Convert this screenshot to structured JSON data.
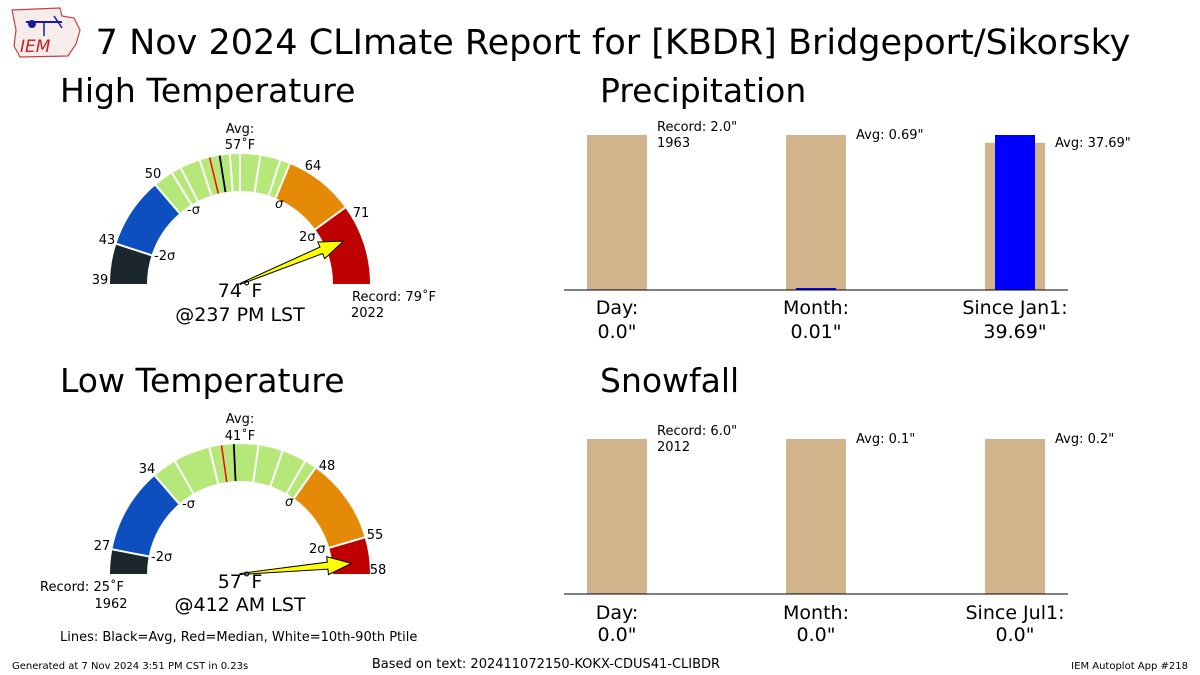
{
  "title": "7 Nov 2024 CLImate Report for [KBDR] Bridgeport/Sikorsky",
  "logo": {
    "text": "IEM"
  },
  "footer": {
    "generated": "Generated at 7 Nov 2024 3:51 PM CST in 0.23s",
    "based_on": "Based on text: 202411072150-KOKX-CDUS41-CLIBDR",
    "app": "IEM Autoplot App #218",
    "lines_note": "Lines: Black=Avg, Red=Median, White=10th-90th Ptile"
  },
  "colors": {
    "gauge_dark": "#1c262d",
    "gauge_blue": "#0e4fc0",
    "gauge_green": "#b5e878",
    "gauge_orange": "#e58a06",
    "gauge_red": "#bf0000",
    "arrow_fill": "#ffff00",
    "bar_avg": "#d2b48c",
    "bar_obs": "#0000ff"
  },
  "chart_data": [
    {
      "type": "gauge",
      "title": "High Temperature",
      "unit": "°F",
      "range": [
        39,
        79
      ],
      "bands": [
        {
          "from": 39,
          "to": 43,
          "color": "#1c262d"
        },
        {
          "from": 43,
          "to": 50,
          "color": "#0e4fc0"
        },
        {
          "from": 50,
          "to": 64,
          "color": "#b5e878"
        },
        {
          "from": 64,
          "to": 71,
          "color": "#e58a06"
        },
        {
          "from": 71,
          "to": 79,
          "color": "#bf0000"
        }
      ],
      "tick_labels": [
        "39",
        "43",
        "50",
        "64",
        "71"
      ],
      "sigma_labels": [
        "-2σ",
        "-σ",
        "σ",
        "2σ"
      ],
      "average": 57,
      "average_label": "Avg:",
      "average_value_label": "57˚F",
      "median": 56,
      "percentile_lines": [
        52,
        53,
        55,
        58,
        59,
        61,
        63
      ],
      "observed": 74,
      "observed_label": "74˚F",
      "time_label": "@237 PM LST",
      "record_label": "Record: 79˚F",
      "record_year": "2022"
    },
    {
      "type": "gauge",
      "title": "Low Temperature",
      "unit": "°F",
      "range": [
        25,
        58
      ],
      "bands": [
        {
          "from": 25,
          "to": 27,
          "color": "#1c262d"
        },
        {
          "from": 27,
          "to": 34,
          "color": "#0e4fc0"
        },
        {
          "from": 34,
          "to": 48,
          "color": "#b5e878"
        },
        {
          "from": 48,
          "to": 55,
          "color": "#e58a06"
        },
        {
          "from": 55,
          "to": 58,
          "color": "#bf0000"
        }
      ],
      "tick_labels": [
        "27",
        "34",
        "48",
        "55",
        "58"
      ],
      "sigma_labels": [
        "-2σ",
        "-σ",
        "σ",
        "2σ"
      ],
      "average": 41,
      "average_label": "Avg:",
      "average_value_label": "41˚F",
      "median": 40,
      "percentile_lines": [
        36,
        39,
        43,
        45,
        47
      ],
      "observed": 57,
      "observed_label": "57˚F",
      "time_label": "@412 AM LST",
      "record_label": "Record: 25˚F",
      "record_year": "1962"
    },
    {
      "type": "bar",
      "title": "Precipitation",
      "categories": [
        "Day:",
        "Month:",
        "Since Jan1:"
      ],
      "values_text": [
        "0.0\"",
        "0.01\"",
        "39.69\""
      ],
      "observed_fraction_of_top": [
        0.0,
        0.01,
        1.0
      ],
      "reference_fraction_of_top": [
        1.0,
        1.0,
        0.95
      ],
      "annotations": [
        {
          "text": "Record: 2.0\"",
          "subtext": "1963"
        },
        {
          "text": "Avg: 0.69\"",
          "subtext": ""
        },
        {
          "text": "Avg: 37.69\"",
          "subtext": ""
        }
      ]
    },
    {
      "type": "bar",
      "title": "Snowfall",
      "categories": [
        "Day:",
        "Month:",
        "Since Jul1:"
      ],
      "values_text": [
        "0.0\"",
        "0.0\"",
        "0.0\""
      ],
      "observed_fraction_of_top": [
        0.0,
        0.0,
        0.0
      ],
      "reference_fraction_of_top": [
        1.0,
        1.0,
        1.0
      ],
      "annotations": [
        {
          "text": "Record: 6.0\"",
          "subtext": "2012"
        },
        {
          "text": "Avg: 0.1\"",
          "subtext": ""
        },
        {
          "text": "Avg: 0.2\"",
          "subtext": ""
        }
      ]
    }
  ]
}
